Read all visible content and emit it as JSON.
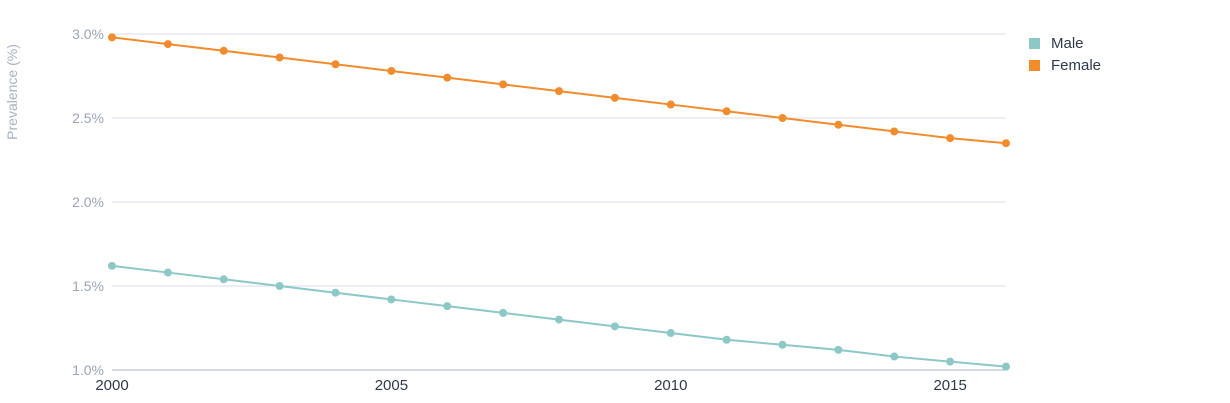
{
  "chart_data": {
    "type": "line",
    "ylabel": "Prevalence (%)",
    "xlabel": "",
    "ylim": [
      1.0,
      3.0
    ],
    "yticks": [
      "3.0%",
      "2.5%",
      "2.0%",
      "1.5%",
      "1.0%"
    ],
    "ytick_values": [
      3.0,
      2.5,
      2.0,
      1.5,
      1.0
    ],
    "xticks": [
      "2000",
      "2005",
      "2010",
      "2015"
    ],
    "xtick_values": [
      2000,
      2005,
      2010,
      2015
    ],
    "xlim": [
      2000,
      2016
    ],
    "x": [
      2000,
      2001,
      2002,
      2003,
      2004,
      2005,
      2006,
      2007,
      2008,
      2009,
      2010,
      2011,
      2012,
      2013,
      2014,
      2015,
      2016
    ],
    "series": [
      {
        "name": "Male",
        "color": "#8cc8c6",
        "values": [
          1.62,
          1.58,
          1.54,
          1.5,
          1.46,
          1.42,
          1.38,
          1.34,
          1.3,
          1.26,
          1.22,
          1.18,
          1.15,
          1.12,
          1.08,
          1.05,
          1.02
        ]
      },
      {
        "name": "Female",
        "color": "#f28b2c",
        "values": [
          2.98,
          2.94,
          2.9,
          2.86,
          2.82,
          2.78,
          2.74,
          2.7,
          2.66,
          2.62,
          2.58,
          2.54,
          2.5,
          2.46,
          2.42,
          2.38,
          2.35
        ]
      }
    ],
    "grid": true,
    "legend_position": "top-right"
  }
}
